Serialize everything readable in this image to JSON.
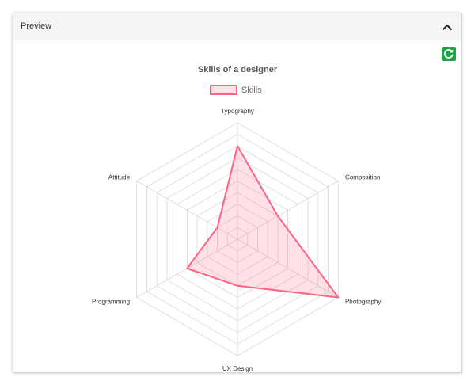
{
  "panel": {
    "title": "Preview"
  },
  "icons": {
    "collapse": "chevron-up-icon",
    "refresh": "refresh-icon"
  },
  "colors": {
    "series_stroke": "#ff6384",
    "series_fill": "rgba(255,99,132,0.2)",
    "grid": "#d8d8d8",
    "refresh_button": "#1ea446"
  },
  "chart_data": {
    "type": "radar",
    "title": "Skills of a designer",
    "labels": [
      "Typography",
      "Composition",
      "Photography",
      "UX Design",
      "Programming",
      "Attitude"
    ],
    "series": [
      {
        "name": "Skills",
        "values": [
          8,
          4,
          10,
          4,
          5,
          2
        ]
      }
    ],
    "rlim": [
      0,
      10
    ],
    "grid_rings": 10,
    "legend_position": "top"
  }
}
